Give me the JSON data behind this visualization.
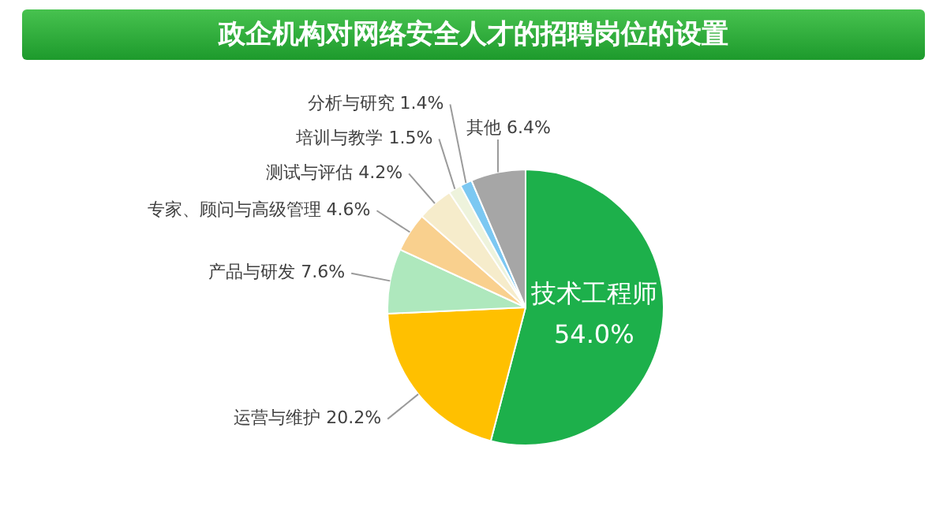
{
  "chart_data": {
    "type": "pie",
    "title": "政企机构对网络安全人才的招聘岗位的设置",
    "categories": [
      "技术工程师",
      "运营与维护",
      "产品与研发",
      "专家、顾问与高级管理",
      "测试与评估",
      "培训与教学",
      "分析与研究",
      "其他"
    ],
    "values": [
      54.0,
      20.2,
      7.6,
      4.6,
      4.2,
      1.5,
      1.4,
      6.4
    ],
    "colors": [
      "#1db04b",
      "#ffc000",
      "#aee8bd",
      "#f9d08e",
      "#f6eccb",
      "#eef3dc",
      "#7cc8f2",
      "#a6a6a6"
    ],
    "value_labels": [
      "54.0%",
      "20.2%",
      "7.6%",
      "4.6%",
      "4.2%",
      "1.5%",
      "1.4%",
      "6.4%"
    ]
  }
}
